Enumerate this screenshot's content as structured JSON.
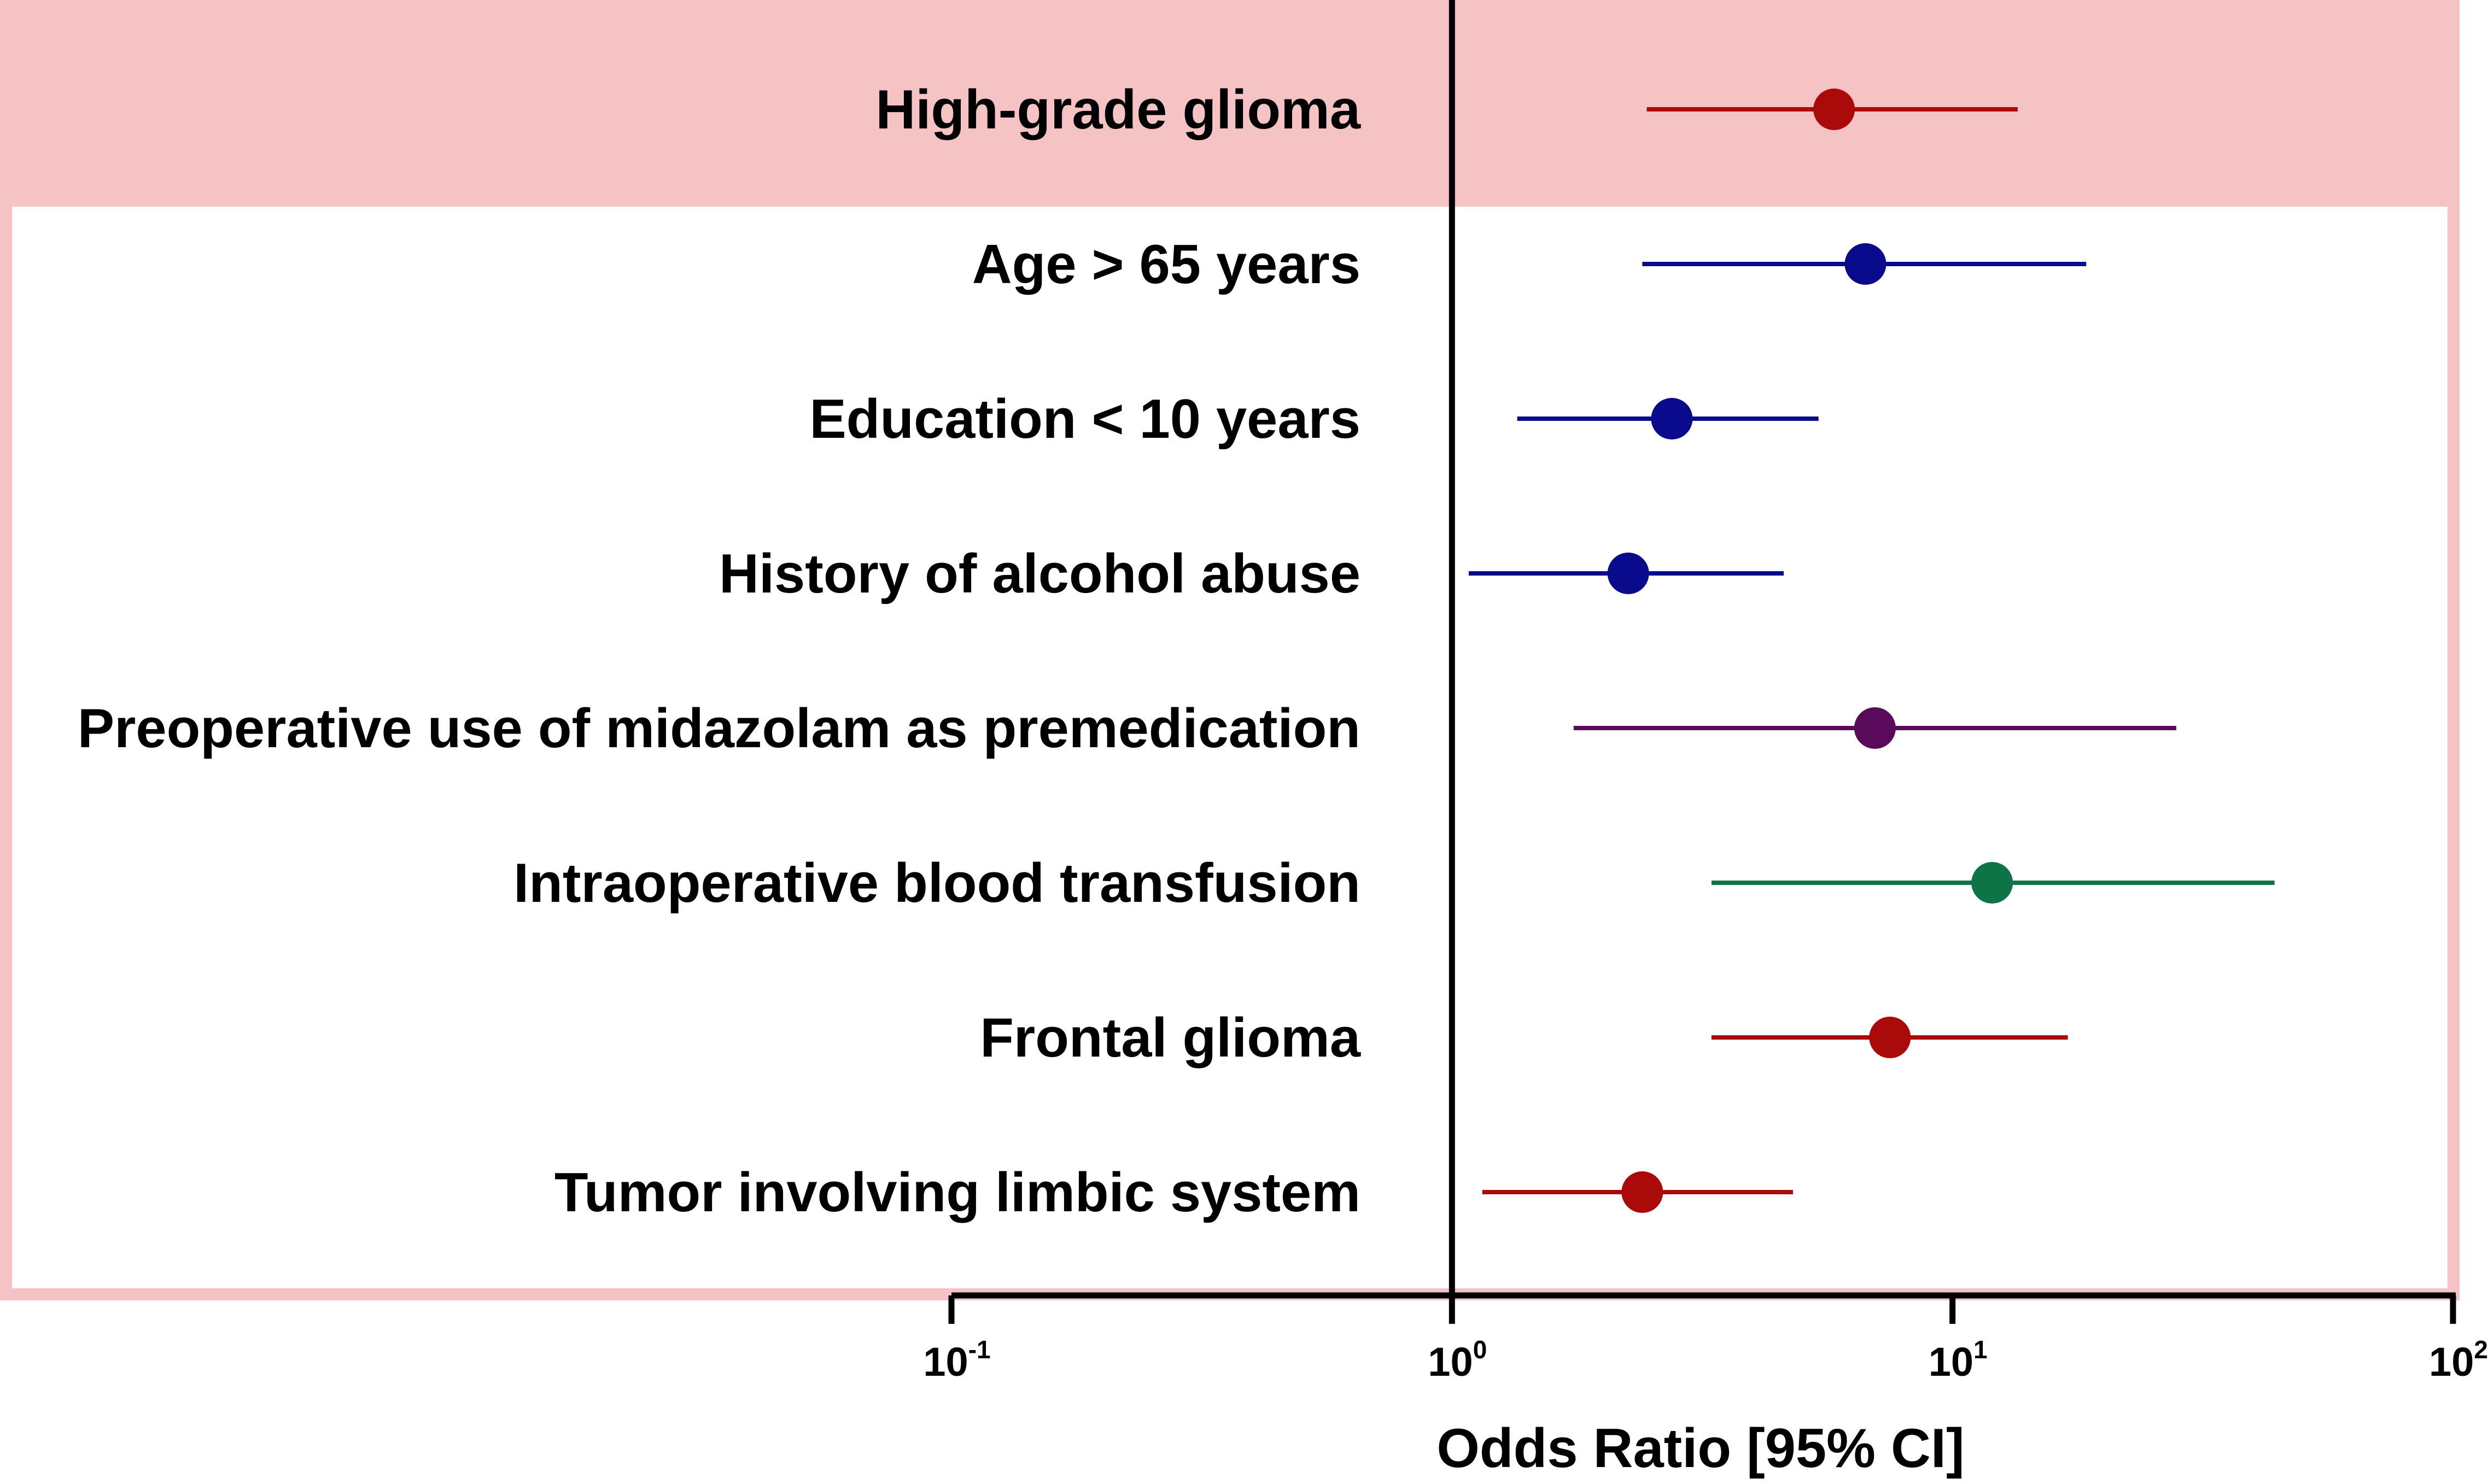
{
  "chart_data": {
    "type": "forest",
    "title": "",
    "xlabel": "Odds Ratio [95% CI]",
    "xscale": "log10",
    "xlim": [
      0.1,
      100
    ],
    "reference_line": 1,
    "xticks": [
      {
        "value": 0.1,
        "base": "10",
        "exp": "-1"
      },
      {
        "value": 1,
        "base": "10",
        "exp": "0"
      },
      {
        "value": 10,
        "base": "10",
        "exp": "1"
      },
      {
        "value": 100,
        "base": "10",
        "exp": "2"
      }
    ],
    "rows": [
      {
        "label": "High-grade glioma",
        "or": 5.8,
        "lower": 2.45,
        "upper": 13.5,
        "color": "#aa0a0a",
        "highlight": true
      },
      {
        "label": "Age > 65 years",
        "or": 6.7,
        "lower": 2.4,
        "upper": 18.5,
        "color": "#0a0a8c",
        "highlight": false
      },
      {
        "label": "Education < 10 years",
        "or": 2.75,
        "lower": 1.35,
        "upper": 5.4,
        "color": "#0a0a8c",
        "highlight": false
      },
      {
        "label": "History of alcohol abuse",
        "or": 2.25,
        "lower": 1.08,
        "upper": 4.6,
        "color": "#0a0a8c",
        "highlight": false
      },
      {
        "label": "Preoperative use of midazolam as premedication",
        "or": 7.0,
        "lower": 1.75,
        "upper": 28,
        "color": "#5a0a5a",
        "highlight": false
      },
      {
        "label": "Intraoperative blood transfusion",
        "or": 12,
        "lower": 3.3,
        "upper": 44,
        "color": "#0f7348",
        "highlight": false
      },
      {
        "label": "Frontal glioma",
        "or": 7.5,
        "lower": 3.3,
        "upper": 17,
        "color": "#aa0a0a",
        "highlight": false
      },
      {
        "label": "Tumor involving limbic system",
        "or": 2.4,
        "lower": 1.15,
        "upper": 4.8,
        "color": "#aa0a0a",
        "highlight": false
      }
    ],
    "highlight_fill": "#f6c3c5",
    "frame_color": "#f6c3c5"
  }
}
